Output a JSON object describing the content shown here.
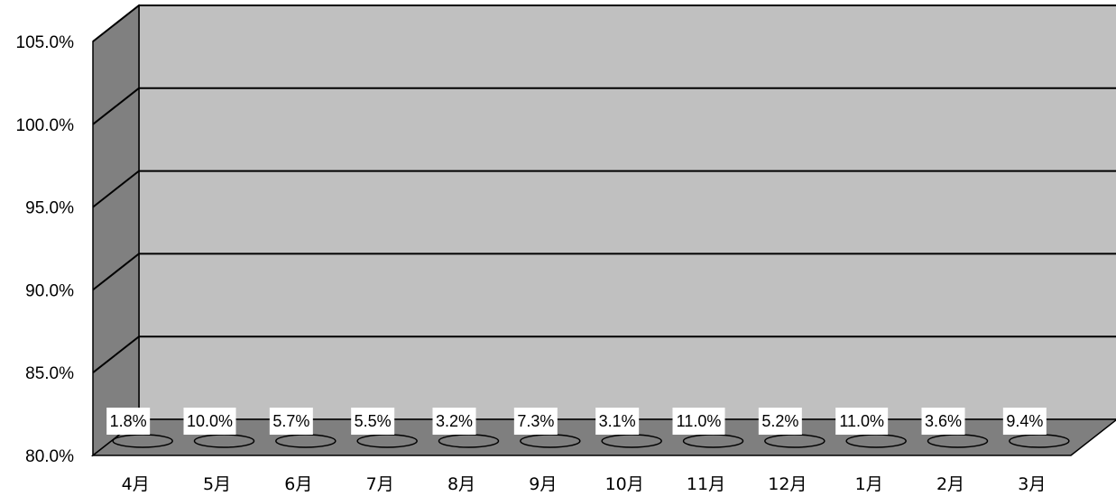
{
  "chart_data": {
    "type": "bar",
    "categories": [
      "4月",
      "5月",
      "6月",
      "7月",
      "8月",
      "9月",
      "10月",
      "11月",
      "12月",
      "1月",
      "2月",
      "3月"
    ],
    "values": [
      1.8,
      10.0,
      5.7,
      5.5,
      3.2,
      7.3,
      3.1,
      11.0,
      5.2,
      11.0,
      3.6,
      9.4
    ],
    "data_labels": [
      "1.8%",
      "10.0%",
      "5.7%",
      "5.5%",
      "3.2%",
      "7.3%",
      "3.1%",
      "11.0%",
      "5.2%",
      "11.0%",
      "3.6%",
      "9.4%"
    ],
    "y_ticks": [
      "80.0%",
      "85.0%",
      "90.0%",
      "95.0%",
      "100.0%",
      "105.0%"
    ],
    "ylim": [
      80,
      105
    ],
    "three_d": true,
    "grid": true,
    "colors": {
      "wall": "#c0c0c0",
      "side_wall": "#808080",
      "floor": "#7f7f7f",
      "gridline": "#000000",
      "label_bg": "#ffffff"
    }
  }
}
